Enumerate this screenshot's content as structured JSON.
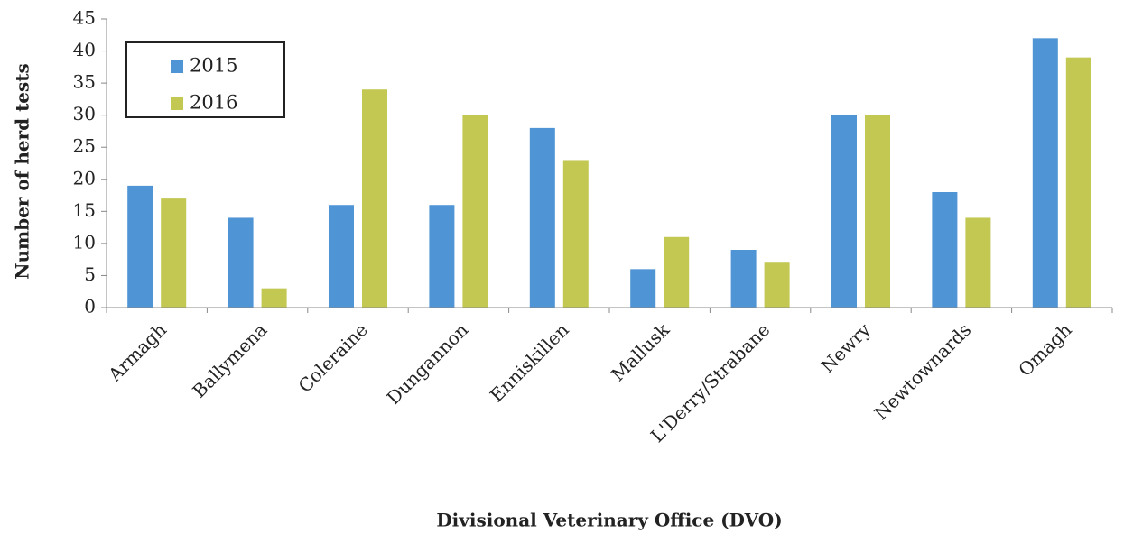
{
  "chart_data": {
    "type": "bar",
    "x_label": "Divisional Veterinary Office (DVO)",
    "y_label": "Number of herd tests",
    "categories": [
      "Armagh",
      "Ballymena",
      "Coleraine",
      "Dungannon",
      "Enniskillen",
      "Mallusk",
      "L'Derry/Strabane",
      "Newry",
      "Newtownards",
      "Omagh"
    ],
    "series": [
      {
        "name": "2015",
        "color": "#4f94d4",
        "values": [
          19,
          14,
          16,
          16,
          28,
          6,
          9,
          30,
          18,
          42
        ]
      },
      {
        "name": "2016",
        "color": "#c2c852",
        "values": [
          17,
          3,
          34,
          30,
          23,
          11,
          7,
          30,
          14,
          39
        ]
      }
    ],
    "ylim": [
      0,
      45
    ],
    "yticks": [
      0,
      5,
      10,
      15,
      20,
      25,
      30,
      35,
      40,
      45
    ],
    "grid": false,
    "legend": "upper-left"
  }
}
